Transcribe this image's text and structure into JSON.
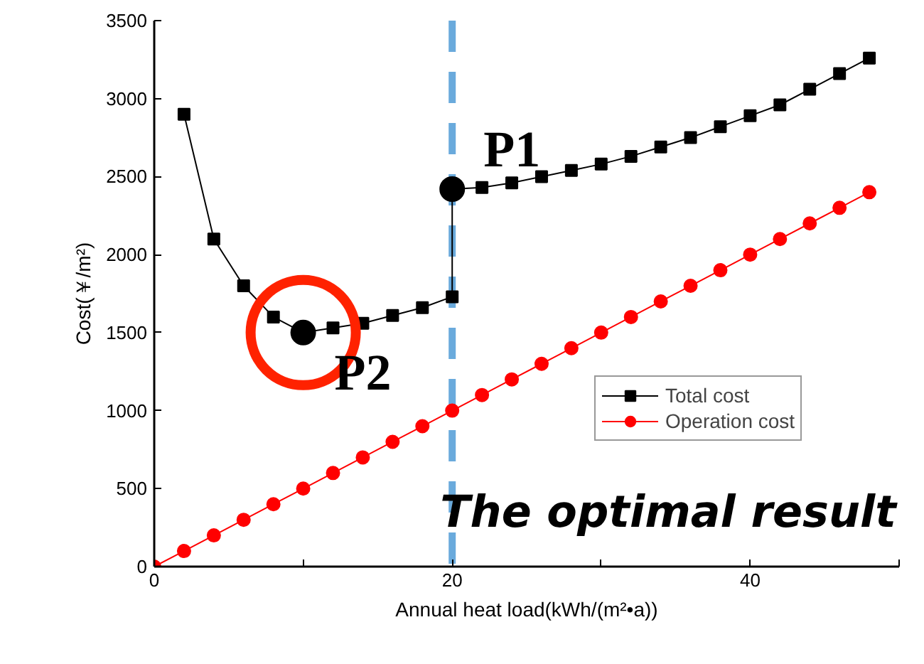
{
  "chart_data": {
    "type": "line",
    "xlabel": "Annual heat load(kWh/(m²•a))",
    "ylabel": "Cost(￥/m²)",
    "xlim": [
      0,
      50
    ],
    "ylim": [
      0,
      3500
    ],
    "xticks": [
      0,
      {
        "value": 10,
        "label": null
      },
      20,
      {
        "value": 30,
        "label": null
      },
      40,
      {
        "value": 50,
        "label": null
      }
    ],
    "yticks": [
      0,
      500,
      1000,
      1500,
      2000,
      2500,
      3000,
      3500
    ],
    "grid": false,
    "legend": "bottom right",
    "line_style": "solid",
    "series": [
      {
        "name": "Total cost",
        "color": "#000000",
        "marker": "square",
        "x": [
          2,
          4,
          6,
          8,
          10,
          12,
          14,
          16,
          18,
          20,
          20,
          22,
          24,
          26,
          28,
          30,
          32,
          34,
          36,
          38,
          40,
          42,
          44,
          46,
          48
        ],
        "values": [
          2900,
          2100,
          1800,
          1600,
          1500,
          1530,
          1560,
          1610,
          1660,
          1730,
          2420,
          2430,
          2460,
          2500,
          2540,
          2580,
          2630,
          2690,
          2750,
          2820,
          2890,
          2960,
          3060,
          3160,
          3260
        ]
      },
      {
        "name": "Operation cost",
        "color": "#ff0000",
        "marker": "circle",
        "x": [
          0,
          2,
          4,
          6,
          8,
          10,
          12,
          14,
          16,
          18,
          20,
          22,
          24,
          26,
          28,
          30,
          32,
          34,
          36,
          38,
          40,
          42,
          44,
          46,
          48
        ],
        "values": [
          0,
          100,
          200,
          300,
          400,
          500,
          600,
          700,
          800,
          900,
          1000,
          1100,
          1200,
          1300,
          1400,
          1500,
          1600,
          1700,
          1800,
          1900,
          2000,
          2100,
          2200,
          2300,
          2400
        ]
      }
    ],
    "ref_lines": [
      {
        "axis": "x",
        "value": 20,
        "color": "#6aaadc",
        "line_style": "dashed"
      }
    ],
    "annotations": [
      {
        "text": "P1",
        "x": 20,
        "y": 2420
      },
      {
        "text": "P2",
        "x": 10,
        "y": 1500
      },
      "The optimal result"
    ]
  }
}
